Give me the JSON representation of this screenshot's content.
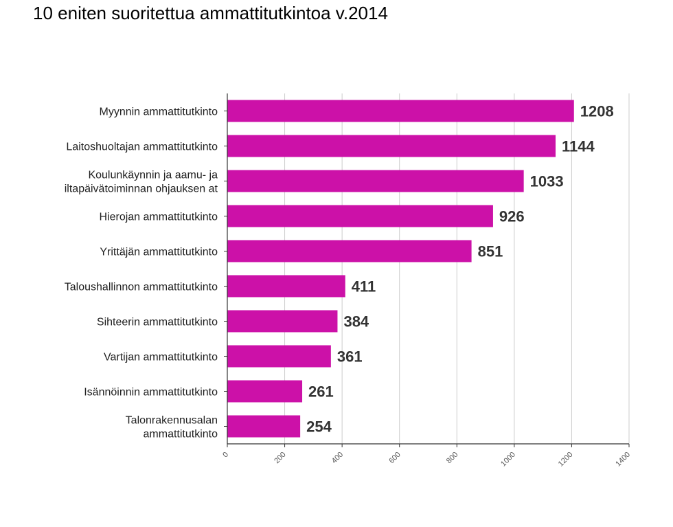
{
  "title": "10 eniten suoritettua ammattitutkintoa v.2014",
  "chart_data": {
    "type": "bar",
    "orientation": "horizontal",
    "title": "10 eniten suoritettua ammattitutkintoa v.2014",
    "categories": [
      "Myynnin ammattitutkinto",
      "Laitoshuoltajan ammattitutkinto",
      "Koulunkäynnin ja aamu- ja iltapäivätoiminnan ohjauksen at",
      "Hierojan ammattitutkinto",
      "Yrittäjän ammattitutkinto",
      "Taloushallinnon ammattitutkinto",
      "Sihteerin ammattitutkinto",
      "Vartijan ammattitutkinto",
      "Isännöinnin ammattitutkinto",
      "Talonrakennusalan ammattitutkinto"
    ],
    "category_lines": [
      [
        "Myynnin ammattitutkinto"
      ],
      [
        "Laitoshuoltajan ammattitutkinto"
      ],
      [
        "Koulunkäynnin ja aamu- ja",
        "iltapäivätoiminnan ohjauksen at"
      ],
      [
        "Hierojan ammattitutkinto"
      ],
      [
        "Yrittäjän ammattitutkinto"
      ],
      [
        "Taloushallinnon ammattitutkinto"
      ],
      [
        "Sihteerin ammattitutkinto"
      ],
      [
        "Vartijan ammattitutkinto"
      ],
      [
        "Isännöinnin ammattitutkinto"
      ],
      [
        "Talonrakennusalan",
        "ammattitutkinto"
      ]
    ],
    "values": [
      1208,
      1144,
      1033,
      926,
      851,
      411,
      384,
      361,
      261,
      254
    ],
    "xlim": [
      0,
      1400
    ],
    "xticks": [
      0,
      200,
      400,
      600,
      800,
      1000,
      1200,
      1400
    ],
    "xlabel": "",
    "ylabel": "",
    "grid": true,
    "legend": false,
    "bar_color": "#cc11a8",
    "data_labels": true
  }
}
